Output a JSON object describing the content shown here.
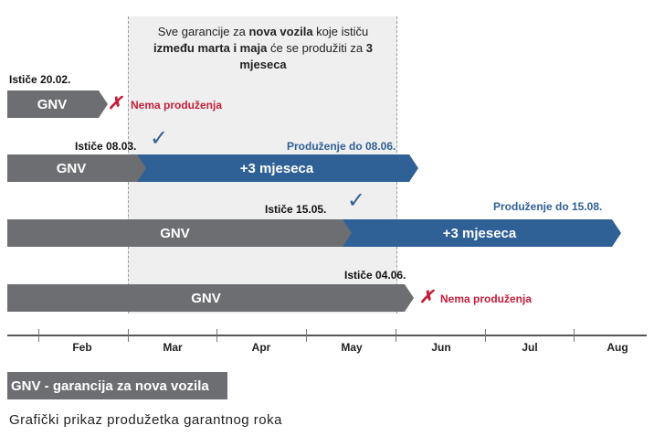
{
  "note": {
    "t1": "Sve garancije za ",
    "b1": "nova vozila",
    "t2": " koje ističu ",
    "b2": "između marta i maja",
    "t3": " će se produžiti za ",
    "b3": "3 mjeseca"
  },
  "rows": [
    {
      "expiry_label": "Ističe 20.02.",
      "bar_label": "GNV",
      "outcome": "Nema produženja",
      "outcome_mark": "✗"
    },
    {
      "expiry_label": "Ističe 08.03.",
      "bar_label": "GNV",
      "extension_label": "+3 mjeseca",
      "extension_note": "Produženje do 08.06.",
      "outcome_mark": "✓"
    },
    {
      "expiry_label": "Ističe 15.05.",
      "bar_label": "GNV",
      "extension_label": "+3 mjeseca",
      "extension_note": "Produženje do 15.08.",
      "outcome_mark": "✓"
    },
    {
      "expiry_label": "Ističe 04.06.",
      "bar_label": "GNV",
      "outcome": "Nema produženja",
      "outcome_mark": "✗"
    }
  ],
  "axis": {
    "months": [
      "Feb",
      "Mar",
      "Apr",
      "May",
      "Jun",
      "Jul",
      "Aug"
    ]
  },
  "legend": "GNV - garancija za nova vozila",
  "caption": "Grafički prikaz produžetka garantnog roka",
  "colors": {
    "gnv": "#6d6e71",
    "extension": "#2f6096",
    "no_extension": "#c41e3a",
    "shaded_window": "#efefef"
  }
}
